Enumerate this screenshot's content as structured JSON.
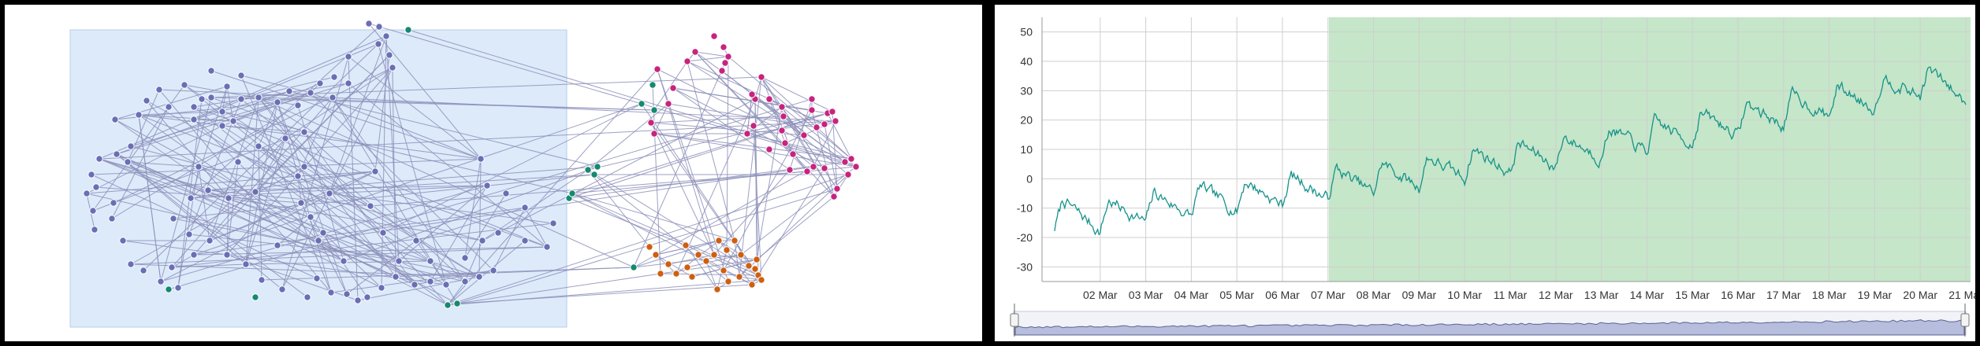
{
  "graph_view": {
    "selection_color": "#dceafa",
    "edge_color": "#8c8fb8",
    "group_colors": {
      "blue": "#6a6fb5",
      "pink": "#c8237e",
      "green": "#16896f",
      "orange": "#cf5f10"
    }
  },
  "chart_data": {
    "type": "line",
    "title": "",
    "xlabel": "",
    "ylabel": "",
    "ylim": [
      -35,
      55
    ],
    "yticks": [
      -30,
      -20,
      -10,
      0,
      10,
      20,
      30,
      40,
      50
    ],
    "x_start": "2019-03-01",
    "x_end": "2019-03-21",
    "xticks": [
      "02 Mar",
      "03 Mar",
      "04 Mar",
      "05 Mar",
      "06 Mar",
      "07 Mar",
      "08 Mar",
      "09 Mar",
      "10 Mar",
      "11 Mar",
      "12 Mar",
      "13 Mar",
      "14 Mar",
      "15 Mar",
      "16 Mar",
      "17 Mar",
      "18 Mar",
      "19 Mar",
      "20 Mar",
      "21 Mar"
    ],
    "grid": true,
    "line_color": "#16928a",
    "highlight_region": {
      "from": "07 Mar",
      "to": "21 Mar",
      "color": "#c5e6c8"
    },
    "series": [
      {
        "x": [
          "01 Mar",
          "02 Mar",
          "03 Mar",
          "04 Mar",
          "05 Mar",
          "06 Mar",
          "07 Mar",
          "08 Mar",
          "09 Mar",
          "10 Mar",
          "11 Mar",
          "12 Mar",
          "13 Mar",
          "14 Mar",
          "15 Mar",
          "16 Mar",
          "17 Mar",
          "18 Mar",
          "19 Mar",
          "20 Mar",
          "21 Mar"
        ],
        "values": [
          -12,
          -13,
          -10,
          -8,
          -6,
          -4,
          -2,
          0,
          2,
          5,
          7,
          9,
          12,
          14,
          17,
          20,
          23,
          26,
          29,
          33,
          31
        ]
      }
    ],
    "navigator": {
      "fill": "#b6bddd",
      "stroke": "#5b6390"
    }
  }
}
